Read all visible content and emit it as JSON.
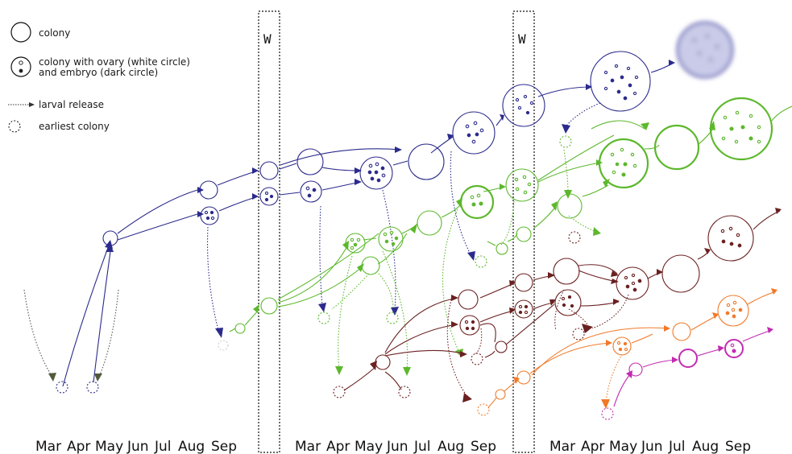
{
  "legend": {
    "colony": "colony",
    "ovary_line1": "colony with ovary (white circle)",
    "ovary_line2": "and embryo (dark circle)",
    "larval": "larval release",
    "earliest": "earliest colony"
  },
  "winter_label": "W",
  "months": [
    [
      "Mar",
      "Apr",
      "May",
      "Jun",
      "Jul",
      "Aug",
      "Sep"
    ],
    [
      "Mar",
      "Apr",
      "May",
      "Jun",
      "Jul",
      "Aug",
      "Sep"
    ],
    [
      "Mar",
      "Apr",
      "May",
      "Jun",
      "Jul",
      "Aug",
      "Sep"
    ]
  ],
  "colors": {
    "blue": "#2b2b8c",
    "green": "#5cb82c",
    "brown": "#6b2020",
    "orange": "#f07a2a",
    "magenta": "#c22bb0",
    "olive": "#505a3a"
  }
}
